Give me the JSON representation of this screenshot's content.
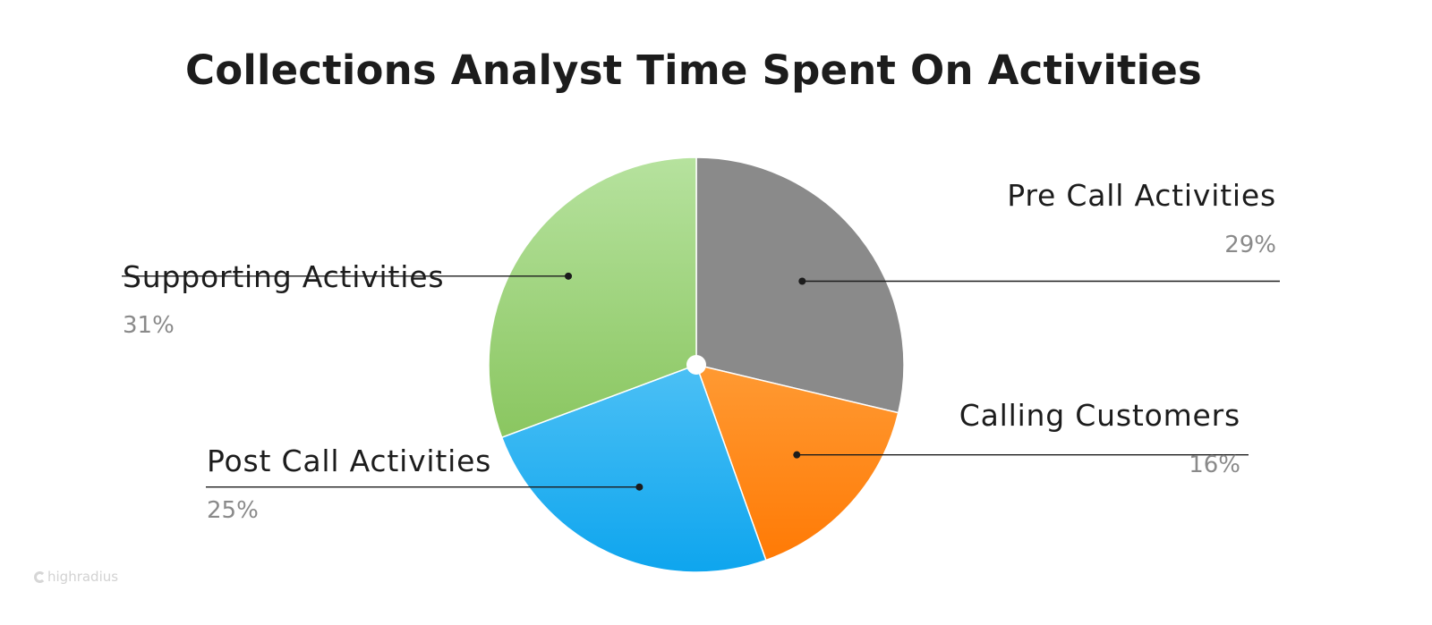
{
  "chart_data": {
    "type": "pie",
    "title": "Collections Analyst Time Spent On Activities",
    "start_angle_deg": 0,
    "direction": "clockwise",
    "slices": [
      {
        "label": "Pre Call Activities",
        "value": 29,
        "value_text": "29%",
        "color_top": "#8a8a8a",
        "color_bottom": "#8a8a8a",
        "label_side": "right"
      },
      {
        "label": "Calling Customers",
        "value": 16,
        "value_text": "16%",
        "color_top": "#ff9a33",
        "color_bottom": "#ff7a05",
        "label_side": "right"
      },
      {
        "label": "Post Call Activities",
        "value": 25,
        "value_text": "25%",
        "color_top": "#4cc0f5",
        "color_bottom": "#0ea5ee",
        "label_side": "left"
      },
      {
        "label": "Supporting Activities",
        "value": 31,
        "value_text": "31%",
        "color_top": "#b6e29e",
        "color_bottom": "#8ac660",
        "label_side": "left"
      }
    ]
  },
  "brand": {
    "name": "highradius"
  }
}
